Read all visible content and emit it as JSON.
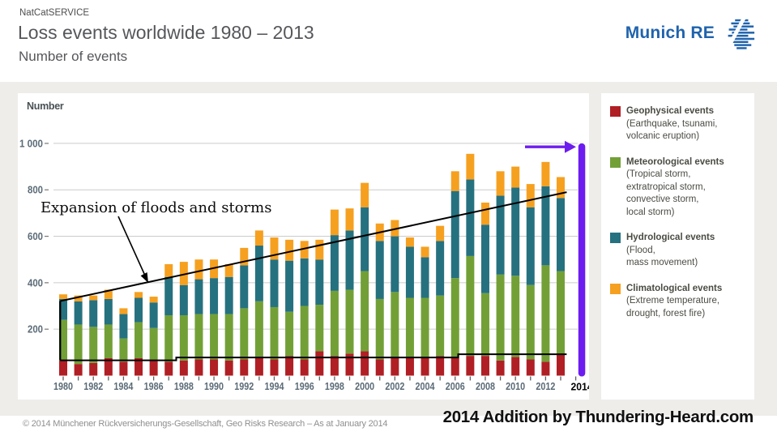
{
  "header": {
    "brand": "NatCatSERVICE",
    "title": "Loss events worldwide 1980 – 2013",
    "subtitle": "Number of events",
    "logo_text": "Munich RE"
  },
  "annotation": {
    "text": "Expansion of floods and storms"
  },
  "legend": {
    "items": [
      {
        "title": "Geophysical events",
        "desc_lines": [
          "(Earthquake, tsunami,",
          "volcanic eruption)"
        ],
        "color": "#b01f24"
      },
      {
        "title": "Meteorological events",
        "desc_lines": [
          "(Tropical storm,",
          "extratropical storm,",
          "convective storm,",
          "local storm)"
        ],
        "color": "#72a037"
      },
      {
        "title": "Hydrological events",
        "desc_lines": [
          "(Flood,",
          "mass movement)"
        ],
        "color": "#26717f"
      },
      {
        "title": "Climatological events",
        "desc_lines": [
          "(Extreme temperature,",
          "drought, forest fire)"
        ],
        "color": "#f6a020"
      }
    ]
  },
  "footer": {
    "copyright": "© 2014 Münchener Rückversicherungs-Gesellschaft, Geo Risks Research – As at January 2014",
    "addition": "2014 Addition by Thundering-Heard.com"
  },
  "colors": {
    "geophysical": "#b01f24",
    "meteorological": "#72a037",
    "hydrological": "#26717f",
    "climatological": "#f6a020",
    "added_purple": "#6d1cf0",
    "grid": "#cbcbcb",
    "tick": "#5f5f5f",
    "trend": "#000000",
    "munich_blue": "#1f63ad",
    "panel_gray": "#eeedea"
  },
  "chart_data": {
    "type": "bar",
    "stacked": true,
    "title": "Loss events worldwide 1980 – 2013",
    "ylabel": "Number",
    "ylim": [
      0,
      1050
    ],
    "grid": true,
    "legend_position": "right",
    "y_ticks": [
      {
        "label": "1 000",
        "value": 1000
      },
      {
        "label": "800",
        "value": 800
      },
      {
        "label": "600",
        "value": 600
      },
      {
        "label": "400",
        "value": 400
      },
      {
        "label": "200",
        "value": 200
      }
    ],
    "categories": [
      1980,
      1981,
      1982,
      1983,
      1984,
      1985,
      1986,
      1987,
      1988,
      1989,
      1990,
      1991,
      1992,
      1993,
      1994,
      1995,
      1996,
      1997,
      1998,
      1999,
      2000,
      2001,
      2002,
      2003,
      2004,
      2005,
      2006,
      2007,
      2008,
      2009,
      2010,
      2011,
      2012,
      2013
    ],
    "x_label_every": 2,
    "series": [
      {
        "name": "Geophysical events",
        "color": "#b01f24",
        "values": [
          65,
          50,
          55,
          75,
          60,
          75,
          65,
          60,
          65,
          70,
          70,
          65,
          70,
          75,
          70,
          85,
          70,
          105,
          85,
          95,
          105,
          70,
          80,
          80,
          80,
          85,
          75,
          85,
          85,
          65,
          80,
          70,
          60,
          90
        ]
      },
      {
        "name": "Meteorological events",
        "color": "#72a037",
        "values": [
          175,
          170,
          155,
          145,
          100,
          155,
          140,
          200,
          195,
          195,
          195,
          200,
          220,
          245,
          225,
          190,
          230,
          200,
          280,
          275,
          345,
          260,
          280,
          255,
          255,
          260,
          345,
          430,
          270,
          370,
          350,
          320,
          415,
          360
        ]
      },
      {
        "name": "Hydrological events",
        "color": "#26717f",
        "values": [
          90,
          100,
          115,
          110,
          105,
          105,
          110,
          165,
          130,
          150,
          155,
          160,
          185,
          240,
          205,
          220,
          205,
          195,
          240,
          255,
          275,
          250,
          240,
          220,
          175,
          235,
          375,
          330,
          295,
          340,
          380,
          335,
          340,
          315
        ]
      },
      {
        "name": "Climatological events",
        "color": "#f6a020",
        "values": [
          20,
          25,
          20,
          40,
          25,
          25,
          25,
          55,
          100,
          85,
          80,
          55,
          75,
          65,
          95,
          90,
          75,
          85,
          110,
          95,
          105,
          75,
          70,
          40,
          45,
          65,
          85,
          110,
          95,
          105,
          90,
          100,
          105,
          90
        ]
      }
    ],
    "added_bar": {
      "label": "2014",
      "x": 2014.4,
      "value": 1000,
      "color": "#6d1cf0"
    },
    "added_arrow": {
      "y_value": 985,
      "color": "#6d1cf0"
    },
    "trend_upper": {
      "from": [
        1979.8,
        321
      ],
      "to": [
        2013.4,
        790
      ]
    },
    "trend_lower_steps": [
      [
        1979.8,
        66
      ],
      [
        1987.5,
        66
      ],
      [
        1987.5,
        78
      ],
      [
        2006.2,
        78
      ],
      [
        2006.2,
        92
      ],
      [
        2013.4,
        92
      ]
    ],
    "bracket_1980": {
      "x": 1979.8,
      "from": 66,
      "to": 321
    }
  }
}
